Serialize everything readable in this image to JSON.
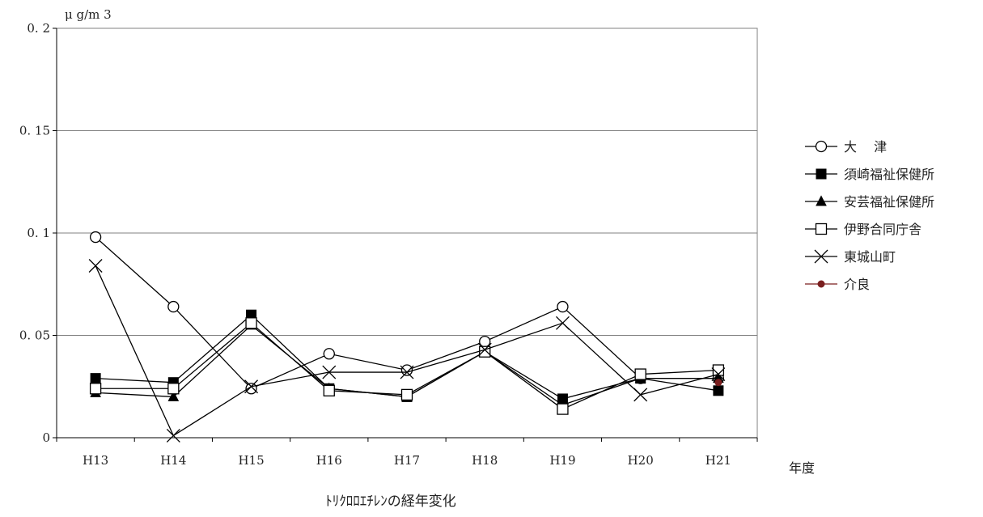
{
  "chart_data": {
    "type": "line",
    "title": "ﾄﾘｸﾛﾛｴﾁﾚﾝの経年変化",
    "unit_label": "μ g/m 3",
    "xlabel": "年度",
    "ylabel": "",
    "categories": [
      "H13",
      "H14",
      "H15",
      "H16",
      "H17",
      "H18",
      "H19",
      "H20",
      "H21"
    ],
    "ylim": [
      0,
      0.2
    ],
    "yticks": [
      0,
      0.05,
      0.1,
      0.15,
      0.2
    ],
    "ytick_labels": [
      "0",
      "0. 05",
      "0. 1",
      "0. 15",
      "0. 2"
    ],
    "grid": "horizontal",
    "legend_position": "right",
    "series": [
      {
        "name": "大　 津",
        "marker": "circle-open",
        "color": "#000000",
        "values": [
          0.098,
          0.064,
          0.024,
          0.041,
          0.033,
          0.047,
          0.064,
          0.029,
          0.029
        ]
      },
      {
        "name": "須崎福祉保健所",
        "marker": "square-filled",
        "color": "#000000",
        "values": [
          0.029,
          0.027,
          0.06,
          0.024,
          0.02,
          0.042,
          0.019,
          0.029,
          0.023
        ]
      },
      {
        "name": "安芸福祉保健所",
        "marker": "triangle-filled",
        "color": "#000000",
        "values": [
          0.022,
          0.02,
          0.055,
          0.024,
          0.02,
          0.042,
          0.016,
          0.029,
          0.029
        ]
      },
      {
        "name": "伊野合同庁舎",
        "marker": "square-open",
        "color": "#000000",
        "values": [
          0.024,
          0.024,
          0.056,
          0.023,
          0.021,
          0.042,
          0.014,
          0.031,
          0.033
        ]
      },
      {
        "name": "東城山町",
        "marker": "x",
        "color": "#000000",
        "values": [
          0.084,
          0.001,
          0.025,
          0.032,
          0.032,
          0.043,
          0.056,
          0.021,
          0.031
        ]
      },
      {
        "name": "介良",
        "marker": "dot-filled",
        "color": "#7a1f1f",
        "values": [
          null,
          null,
          null,
          null,
          null,
          null,
          null,
          null,
          0.027
        ]
      }
    ]
  }
}
